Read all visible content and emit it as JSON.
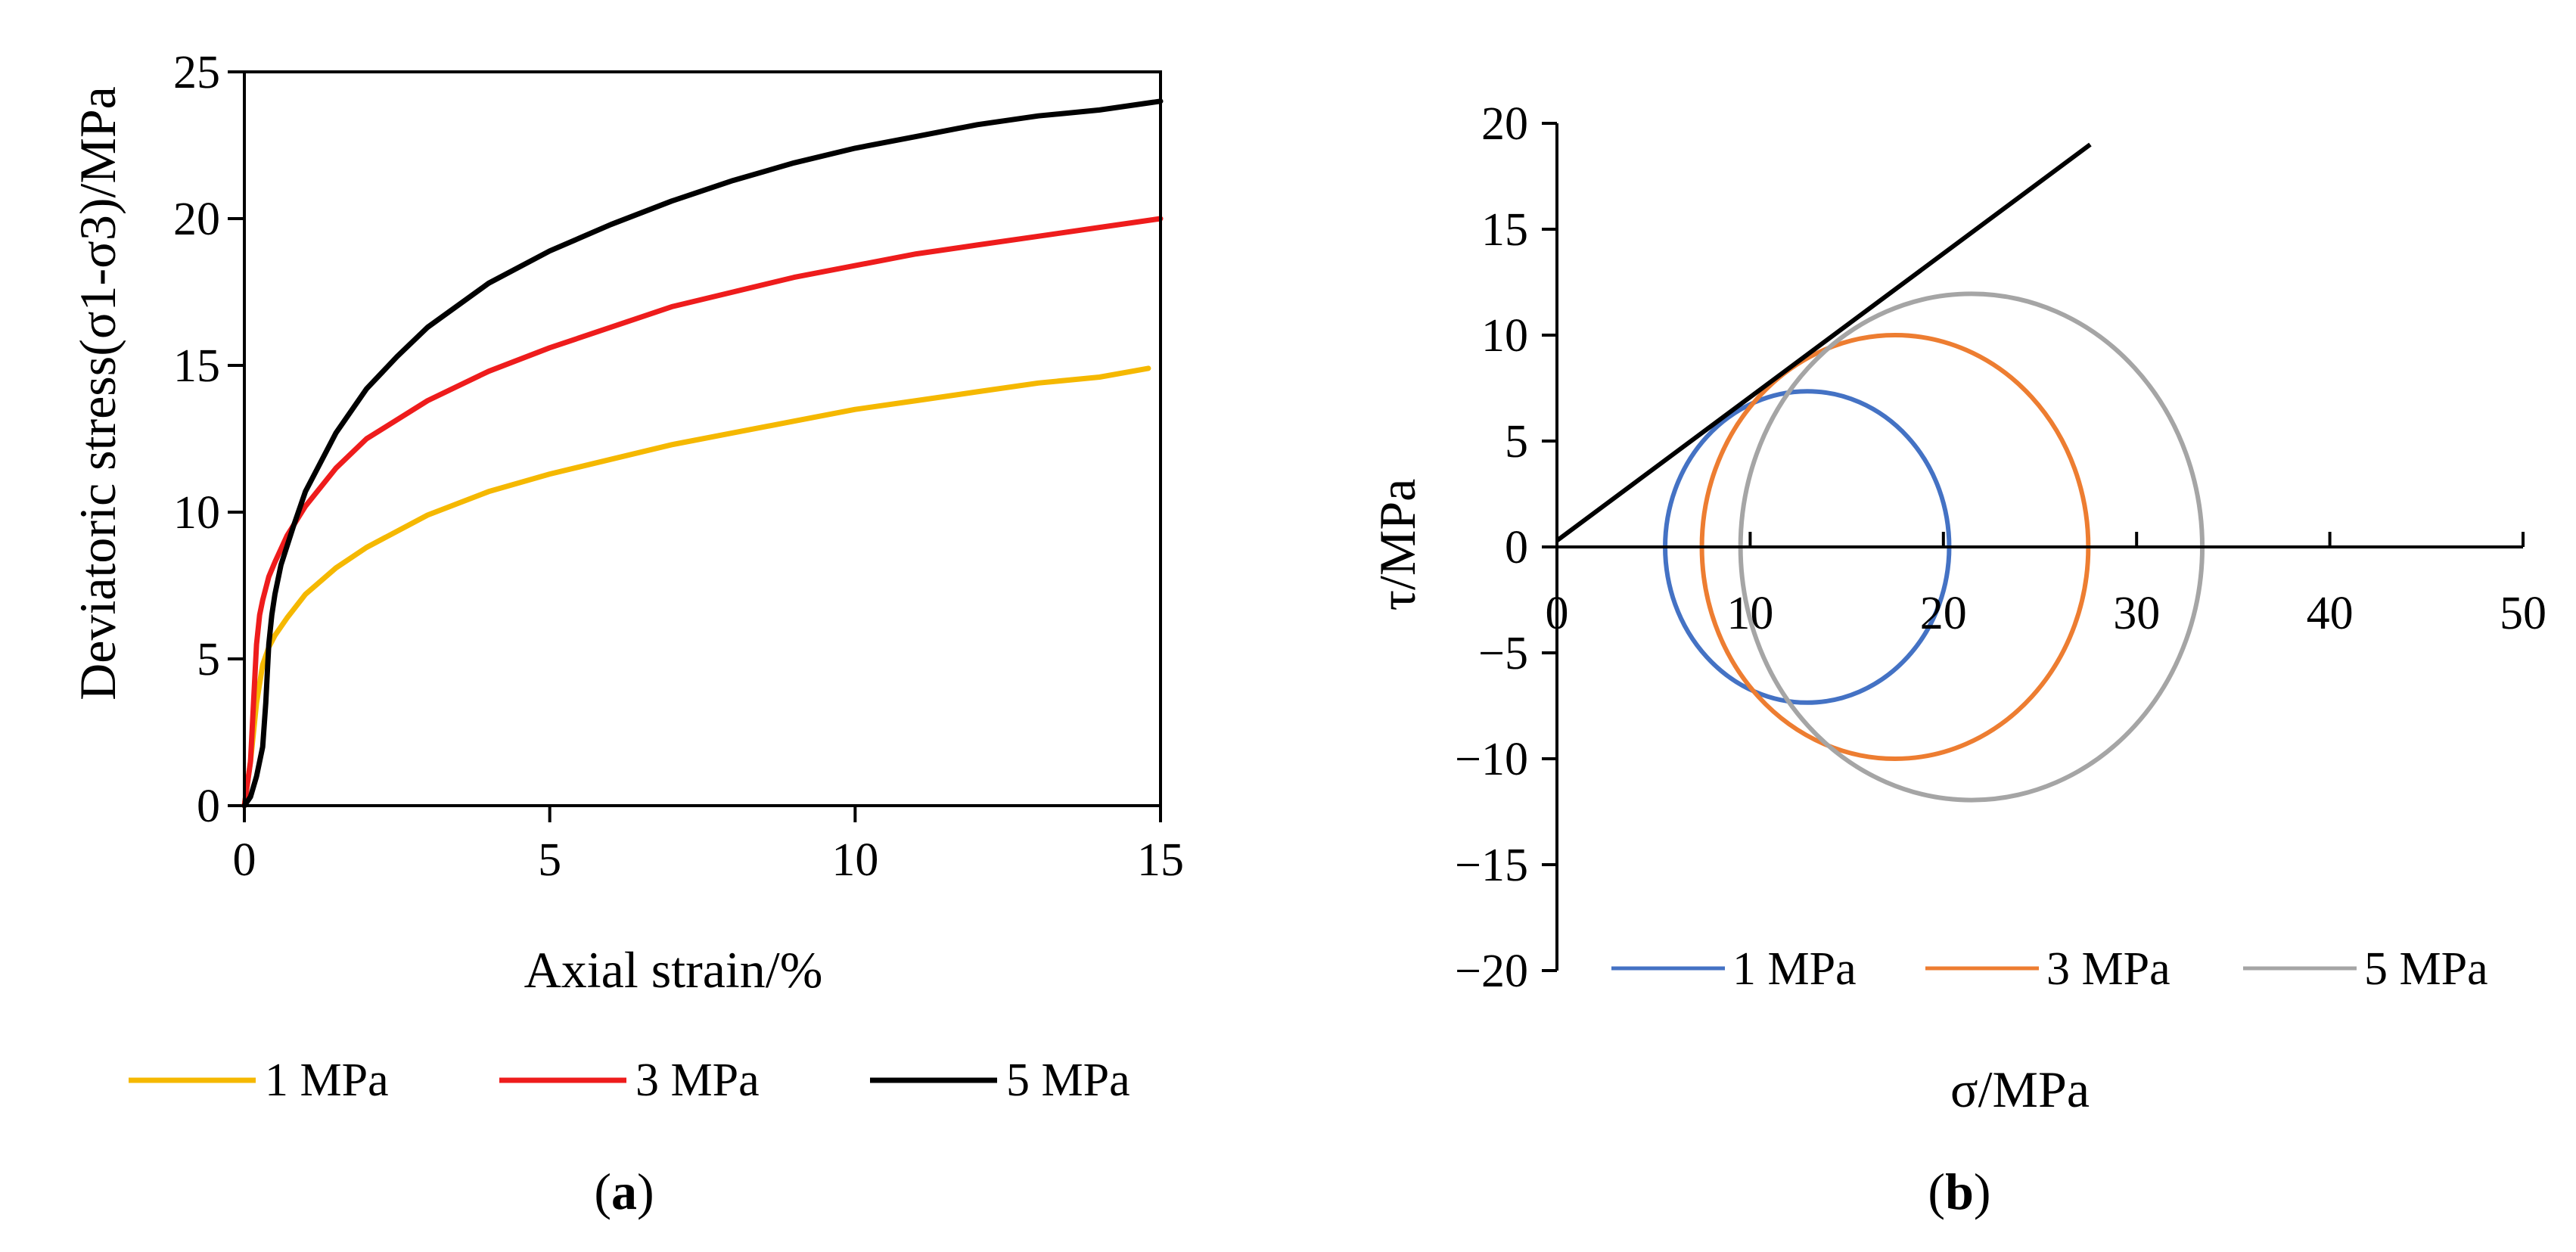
{
  "figure": {
    "panel_a_label": {
      "open": "(",
      "letter": "a",
      "close": ")"
    },
    "panel_b_label": {
      "open": "(",
      "letter": "b",
      "close": ")"
    }
  },
  "chart_data": [
    {
      "id": "a",
      "type": "line",
      "title": "",
      "xlabel": "Axial strain/%",
      "ylabel": "Deviatoric stress(σ1-σ3)/MPa",
      "xlim": [
        0,
        15
      ],
      "ylim": [
        0,
        25
      ],
      "xticks": [
        0,
        5,
        10,
        15
      ],
      "yticks": [
        0,
        5,
        10,
        15,
        20,
        25
      ],
      "grid": false,
      "legend_position": "bottom",
      "series": [
        {
          "name": "1 MPa",
          "color": "#f5b800",
          "x": [
            0,
            0.1,
            0.2,
            0.3,
            0.4,
            0.5,
            0.7,
            1,
            1.5,
            2,
            3,
            4,
            5,
            6,
            7,
            8,
            9,
            10,
            11,
            12,
            13,
            14,
            14.8
          ],
          "y": [
            0,
            1.5,
            3.5,
            4.8,
            5.4,
            5.8,
            6.4,
            7.2,
            8.1,
            8.8,
            9.9,
            10.7,
            11.3,
            11.8,
            12.3,
            12.7,
            13.1,
            13.5,
            13.8,
            14.1,
            14.4,
            14.6,
            14.9
          ]
        },
        {
          "name": "3 MPa",
          "color": "#ee1c1c",
          "x": [
            0,
            0.1,
            0.15,
            0.2,
            0.25,
            0.3,
            0.4,
            0.5,
            0.7,
            1,
            1.5,
            2,
            3,
            4,
            5,
            6,
            7,
            8,
            9,
            10,
            11,
            12,
            13,
            14,
            15
          ],
          "y": [
            0,
            1.5,
            3.5,
            5.5,
            6.5,
            7,
            7.8,
            8.3,
            9.2,
            10.2,
            11.5,
            12.5,
            13.8,
            14.8,
            15.6,
            16.3,
            17,
            17.5,
            18,
            18.4,
            18.8,
            19.1,
            19.4,
            19.7,
            20
          ]
        },
        {
          "name": "5 MPa",
          "color": "#000000",
          "x": [
            0,
            0.1,
            0.2,
            0.3,
            0.35,
            0.4,
            0.45,
            0.5,
            0.6,
            0.8,
            1,
            1.5,
            2,
            2.5,
            3,
            4,
            5,
            6,
            7,
            8,
            9,
            10,
            11,
            12,
            13,
            14,
            15
          ],
          "y": [
            0,
            0.3,
            1,
            2,
            3.5,
            5.5,
            6.5,
            7.2,
            8.2,
            9.5,
            10.7,
            12.7,
            14.2,
            15.3,
            16.3,
            17.8,
            18.9,
            19.8,
            20.6,
            21.3,
            21.9,
            22.4,
            22.8,
            23.2,
            23.5,
            23.7,
            24
          ]
        }
      ]
    },
    {
      "id": "b",
      "type": "line",
      "title": "",
      "xlabel": "σ/MPa",
      "ylabel": "τ/MPa",
      "xlim": [
        0,
        50
      ],
      "ylim": [
        -20,
        20
      ],
      "xticks": [
        0,
        10,
        20,
        30,
        40,
        50
      ],
      "yticks": [
        -20,
        -15,
        -10,
        -5,
        0,
        5,
        10,
        15,
        20
      ],
      "tick_display": {
        "-20": "−20",
        "-15": "−15",
        "-10": "−10",
        "-5": "−5"
      },
      "grid": false,
      "legend_position": "bottom",
      "envelope": {
        "name": "strength envelope",
        "color": "#000000",
        "x": [
          0,
          27.6
        ],
        "y": [
          0.3,
          19
        ]
      },
      "series": [
        {
          "name": "1 MPa",
          "color": "#4472c4",
          "sigma3": 5.6,
          "sigma1": 20.3
        },
        {
          "name": "3 MPa",
          "color": "#ed7d31",
          "sigma3": 7.5,
          "sigma1": 27.5
        },
        {
          "name": "5 MPa",
          "color": "#a5a5a5",
          "sigma3": 9.5,
          "sigma1": 33.4
        }
      ]
    }
  ]
}
